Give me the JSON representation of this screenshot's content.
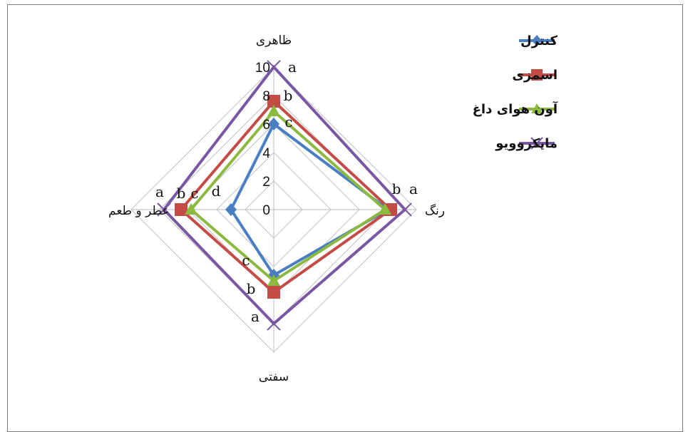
{
  "chart_data": {
    "type": "radar",
    "axes": [
      "ظاهری",
      "رنگ",
      "سفتی",
      "عطر و طعم"
    ],
    "rmax": 10,
    "ticks": [
      "0",
      "2",
      "4",
      "6",
      "8",
      "10"
    ],
    "tick_values": [
      0,
      2,
      4,
      6,
      8,
      10
    ],
    "grid": true,
    "legend_position": "right",
    "series": [
      {
        "name": "کنترل",
        "color": "#4a7ec2",
        "marker": "diamond",
        "values": [
          6,
          8,
          4.6,
          3
        ]
      },
      {
        "name": "اسمزی",
        "color": "#c44b46",
        "marker": "square",
        "values": [
          7.6,
          8.2,
          5.8,
          6.5
        ]
      },
      {
        "name": "آون هوای داغ",
        "color": "#8cba40",
        "marker": "triangle",
        "values": [
          6.9,
          7.8,
          5,
          5.8
        ]
      },
      {
        "name": "مایکروویو",
        "color": "#7a57a3",
        "marker": "x",
        "values": [
          10,
          9.2,
          8,
          7.7
        ]
      }
    ],
    "significance_letters": {
      "ظاهری": [
        "c",
        "b",
        "a"
      ],
      "رنگ": [
        "b",
        "a"
      ],
      "سفتی": [
        "c",
        "b",
        "a"
      ],
      "عطر و طعم": [
        "a",
        "b",
        "c",
        "d"
      ]
    }
  }
}
